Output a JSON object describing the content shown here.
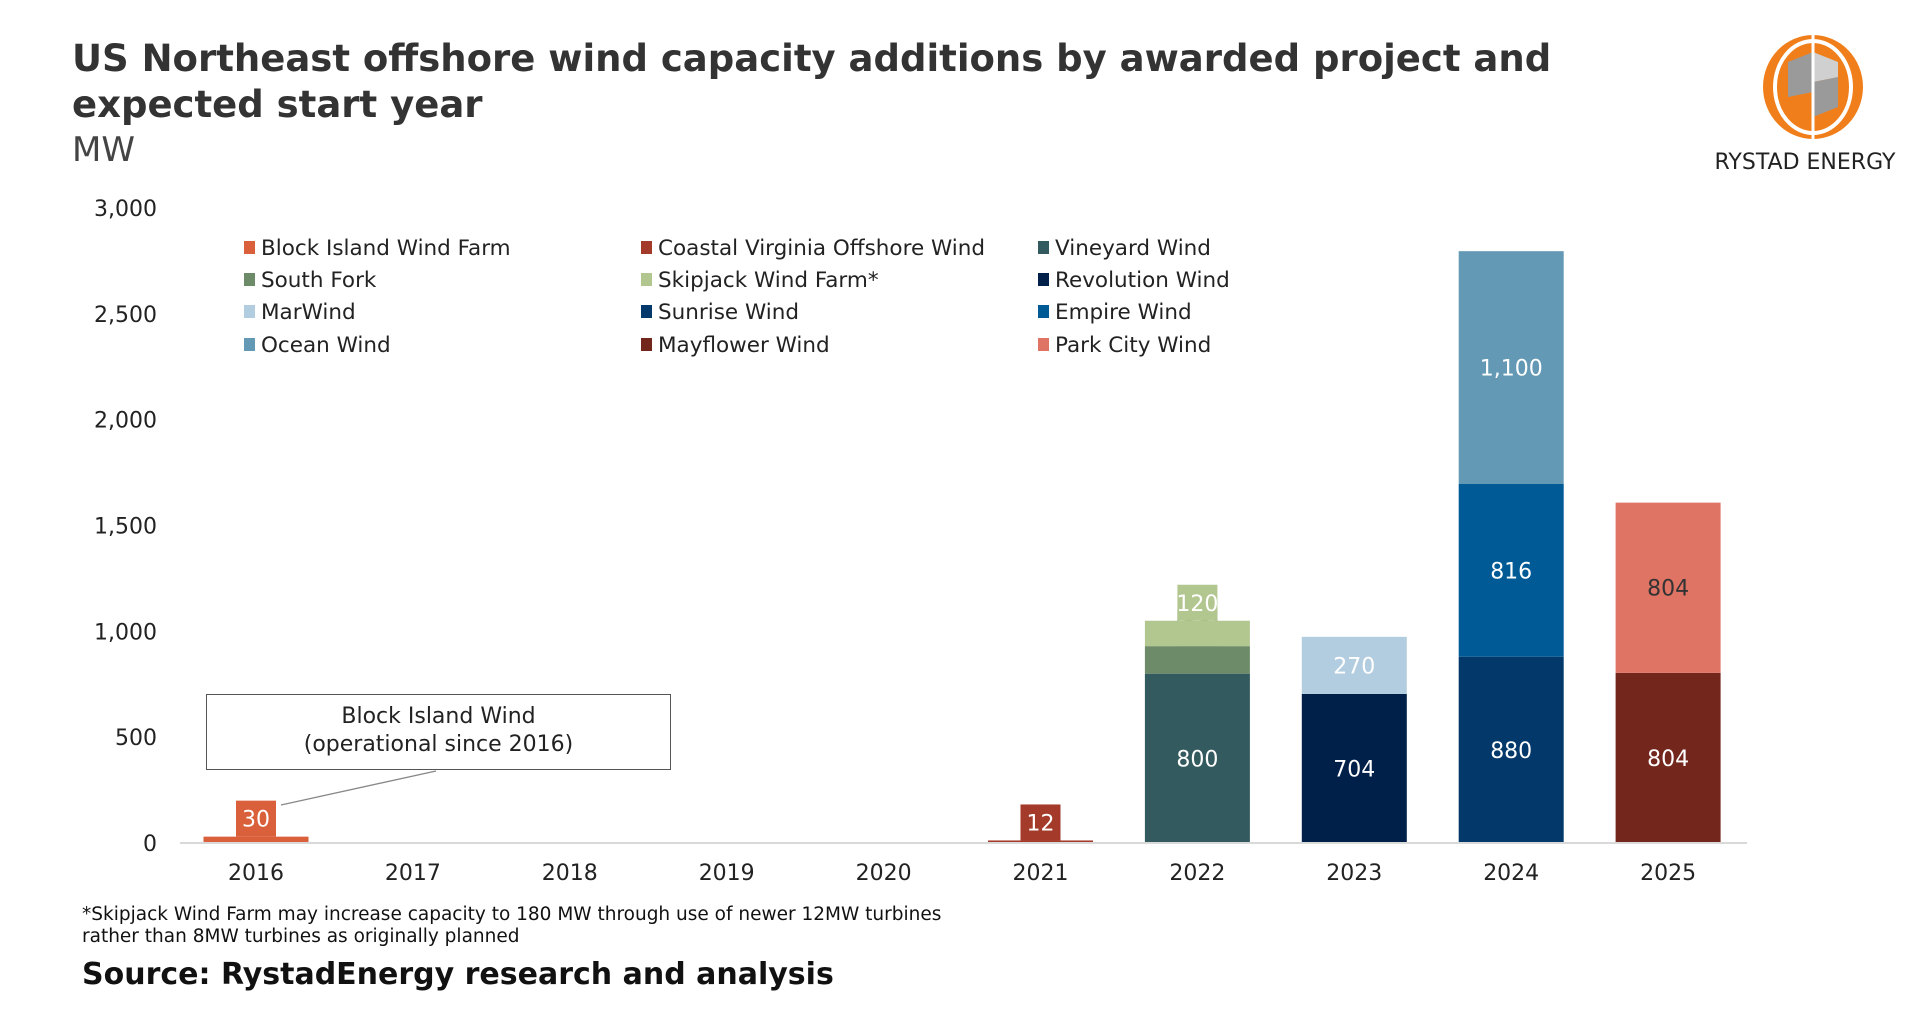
{
  "header": {
    "title": "US Northeast offshore wind capacity additions by awarded project and expected start year",
    "unit": "MW",
    "brand": "RYSTAD ENERGY"
  },
  "annotation": {
    "line1": "Block Island Wind",
    "line2": "(operational since 2016)"
  },
  "footnote": {
    "line1": "*Skipjack Wind Farm may increase capacity to 180 MW through use of newer 12MW turbines",
    "line2": "rather than 8MW turbines as originally planned"
  },
  "source": "Source: RystadEnergy research and analysis",
  "logo": {
    "name": "rystad-energy-logo",
    "colors": [
      "#f07f1b",
      "#8a8a8a"
    ]
  },
  "chart_data": {
    "type": "bar",
    "stacked": true,
    "title": "US Northeast offshore wind capacity additions by awarded project and expected start year",
    "ylabel": "MW",
    "ylim": [
      0,
      3000
    ],
    "yticks": [
      0,
      500,
      1000,
      1500,
      2000,
      2500,
      3000
    ],
    "ytick_labels": [
      "0",
      "500",
      "1,000",
      "1,500",
      "2,000",
      "2,500",
      "3,000"
    ],
    "grid": false,
    "legend_placement": "top-left",
    "categories": [
      "2016",
      "2017",
      "2018",
      "2019",
      "2020",
      "2021",
      "2022",
      "2023",
      "2024",
      "2025"
    ],
    "series": [
      {
        "name": "Block Island Wind Farm",
        "color": "#d9603b",
        "label_color": "#ffffff",
        "values": [
          30,
          0,
          0,
          0,
          0,
          0,
          0,
          0,
          0,
          0
        ],
        "labels": [
          "30",
          "",
          "",
          "",
          "",
          "",
          "",
          "",
          "",
          ""
        ]
      },
      {
        "name": "Coastal Virginia Offshore Wind",
        "color": "#a33a2a",
        "label_color": "#ffffff",
        "values": [
          0,
          0,
          0,
          0,
          0,
          12,
          0,
          0,
          0,
          0
        ],
        "labels": [
          "",
          "",
          "",
          "",
          "",
          "12",
          "",
          "",
          "",
          ""
        ]
      },
      {
        "name": "Vineyard Wind",
        "color": "#335a5e",
        "label_color": "#ffffff",
        "values": [
          0,
          0,
          0,
          0,
          0,
          0,
          800,
          0,
          0,
          0
        ],
        "labels": [
          "",
          "",
          "",
          "",
          "",
          "",
          "800",
          "",
          "",
          ""
        ]
      },
      {
        "name": "South Fork",
        "color": "#6e8b69",
        "label_color": "#ffffff",
        "values": [
          0,
          0,
          0,
          0,
          0,
          0,
          130,
          0,
          0,
          0
        ],
        "labels": [
          "",
          "",
          "",
          "",
          "",
          "",
          "130",
          "",
          "",
          ""
        ]
      },
      {
        "name": "Skipjack Wind Farm*",
        "color": "#b2c690",
        "label_color": "#ffffff",
        "values": [
          0,
          0,
          0,
          0,
          0,
          0,
          120,
          0,
          0,
          0
        ],
        "labels": [
          "",
          "",
          "",
          "",
          "",
          "",
          "120",
          "",
          "",
          ""
        ]
      },
      {
        "name": "Revolution Wind",
        "color": "#00204a",
        "label_color": "#ffffff",
        "values": [
          0,
          0,
          0,
          0,
          0,
          0,
          0,
          704,
          0,
          0
        ],
        "labels": [
          "",
          "",
          "",
          "",
          "",
          "",
          "",
          "704",
          "",
          ""
        ]
      },
      {
        "name": "MarWind",
        "color": "#b3cde0",
        "label_color": "#ffffff",
        "values": [
          0,
          0,
          0,
          0,
          0,
          0,
          0,
          270,
          0,
          0
        ],
        "labels": [
          "",
          "",
          "",
          "",
          "",
          "",
          "",
          "270",
          "",
          ""
        ]
      },
      {
        "name": "Sunrise Wind",
        "color": "#03386b",
        "label_color": "#ffffff",
        "values": [
          0,
          0,
          0,
          0,
          0,
          0,
          0,
          0,
          880,
          0
        ],
        "labels": [
          "",
          "",
          "",
          "",
          "",
          "",
          "",
          "",
          "880",
          ""
        ]
      },
      {
        "name": "Empire Wind",
        "color": "#005a96",
        "label_color": "#ffffff",
        "values": [
          0,
          0,
          0,
          0,
          0,
          0,
          0,
          0,
          816,
          0
        ],
        "labels": [
          "",
          "",
          "",
          "",
          "",
          "",
          "",
          "",
          "816",
          ""
        ]
      },
      {
        "name": "Ocean Wind",
        "color": "#6399b5",
        "label_color": "#ffffff",
        "values": [
          0,
          0,
          0,
          0,
          0,
          0,
          0,
          0,
          1100,
          0
        ],
        "labels": [
          "",
          "",
          "",
          "",
          "",
          "",
          "",
          "",
          "1,100",
          ""
        ]
      },
      {
        "name": "Mayflower Wind",
        "color": "#73261c",
        "label_color": "#ffffff",
        "values": [
          0,
          0,
          0,
          0,
          0,
          0,
          0,
          0,
          0,
          804
        ],
        "labels": [
          "",
          "",
          "",
          "",
          "",
          "",
          "",
          "",
          "",
          "804"
        ]
      },
      {
        "name": "Park City Wind",
        "color": "#df7464",
        "label_color": "#333333",
        "values": [
          0,
          0,
          0,
          0,
          0,
          0,
          0,
          0,
          0,
          804
        ],
        "labels": [
          "",
          "",
          "",
          "",
          "",
          "",
          "",
          "",
          "",
          "804"
        ]
      }
    ]
  }
}
